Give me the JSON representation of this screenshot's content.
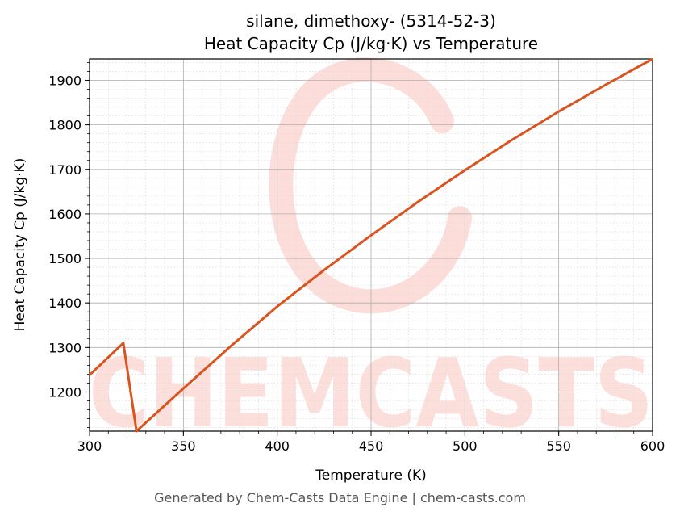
{
  "chart_data": {
    "type": "line",
    "title_line1": "silane, dimethoxy- (5314-52-3)",
    "title_line2": "Heat Capacity Cp (J/kg·K) vs Temperature",
    "xlabel": "Temperature (K)",
    "ylabel": "Heat Capacity Cp (J/kg·K)",
    "xlim": [
      300,
      600
    ],
    "ylim": [
      1112,
      1948
    ],
    "x_ticks": [
      300,
      350,
      400,
      450,
      500,
      550,
      600
    ],
    "y_ticks": [
      1200,
      1300,
      1400,
      1500,
      1600,
      1700,
      1800,
      1900
    ],
    "grid": true,
    "line_color": "#d9541e",
    "series": [
      {
        "x": [
          300,
          318,
          325,
          350,
          375,
          400,
          425,
          450,
          475,
          500,
          525,
          550,
          575,
          600
        ],
        "values": [
          1238,
          1310,
          1112,
          1208,
          1302,
          1392,
          1474,
          1552,
          1627,
          1698,
          1766,
          1830,
          1890,
          1948
        ]
      }
    ]
  },
  "watermark": {
    "text": "CHEMCASTS",
    "color": "#fbd5cf"
  },
  "footer": "Generated by Chem-Casts Data Engine | chem-casts.com"
}
